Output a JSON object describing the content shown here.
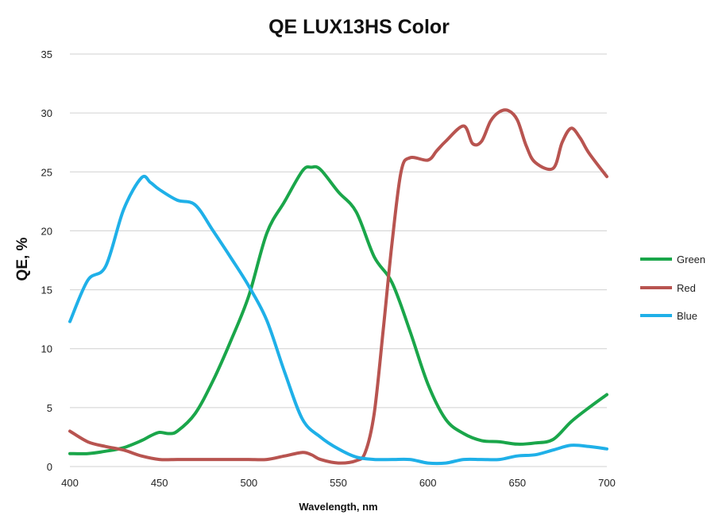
{
  "chart_data": {
    "type": "line",
    "title": "QE LUX13HS Color",
    "xlabel": "Wavelength, nm",
    "ylabel": "QE, %",
    "xlim": [
      400,
      700
    ],
    "ylim": [
      0,
      35
    ],
    "xticks": [
      400,
      450,
      500,
      550,
      600,
      650,
      700
    ],
    "yticks": [
      0,
      5,
      10,
      15,
      20,
      25,
      30,
      35
    ],
    "grid": "horizontal",
    "legend": "right",
    "series": [
      {
        "name": "Green",
        "color": "#1aa64a",
        "x": [
          400,
          410,
          420,
          430,
          440,
          445,
          450,
          455,
          460,
          470,
          480,
          490,
          500,
          510,
          520,
          530,
          535,
          540,
          550,
          560,
          570,
          580,
          590,
          600,
          610,
          620,
          630,
          640,
          650,
          660,
          670,
          680,
          690,
          700
        ],
        "y": [
          1.1,
          1.1,
          1.3,
          1.6,
          2.2,
          2.6,
          2.9,
          2.8,
          3.0,
          4.5,
          7.3,
          10.7,
          14.5,
          19.8,
          22.5,
          25.1,
          25.4,
          25.2,
          23.3,
          21.6,
          17.8,
          15.6,
          11.5,
          7.0,
          4.0,
          2.8,
          2.2,
          2.1,
          1.9,
          2.0,
          2.3,
          3.8,
          5.0,
          6.1
        ]
      },
      {
        "name": "Red",
        "color": "#b85450",
        "x": [
          400,
          410,
          420,
          430,
          440,
          450,
          460,
          470,
          480,
          490,
          500,
          510,
          520,
          530,
          535,
          540,
          550,
          560,
          565,
          570,
          575,
          580,
          585,
          590,
          600,
          605,
          610,
          620,
          625,
          630,
          635,
          640,
          645,
          650,
          655,
          660,
          670,
          675,
          680,
          685,
          690,
          700
        ],
        "y": [
          3.0,
          2.1,
          1.7,
          1.4,
          0.9,
          0.6,
          0.6,
          0.6,
          0.6,
          0.6,
          0.6,
          0.6,
          0.9,
          1.2,
          1.0,
          0.6,
          0.3,
          0.5,
          1.2,
          4.5,
          11.5,
          19.0,
          25.0,
          26.2,
          26.0,
          26.8,
          27.6,
          28.9,
          27.4,
          27.6,
          29.3,
          30.1,
          30.2,
          29.4,
          27.2,
          25.8,
          25.3,
          27.5,
          28.7,
          27.9,
          26.6,
          24.6
        ]
      },
      {
        "name": "Blue",
        "color": "#1fb0e8",
        "x": [
          400,
          410,
          420,
          430,
          440,
          445,
          450,
          460,
          470,
          480,
          490,
          500,
          510,
          520,
          530,
          540,
          550,
          560,
          570,
          580,
          590,
          600,
          610,
          620,
          630,
          640,
          650,
          660,
          670,
          680,
          690,
          700
        ],
        "y": [
          12.3,
          15.8,
          17.0,
          21.8,
          24.5,
          24.1,
          23.5,
          22.6,
          22.2,
          20.0,
          17.7,
          15.3,
          12.4,
          8.0,
          4.0,
          2.5,
          1.5,
          0.8,
          0.6,
          0.6,
          0.6,
          0.3,
          0.3,
          0.6,
          0.6,
          0.6,
          0.9,
          1.0,
          1.4,
          1.8,
          1.7,
          1.5
        ]
      }
    ]
  }
}
